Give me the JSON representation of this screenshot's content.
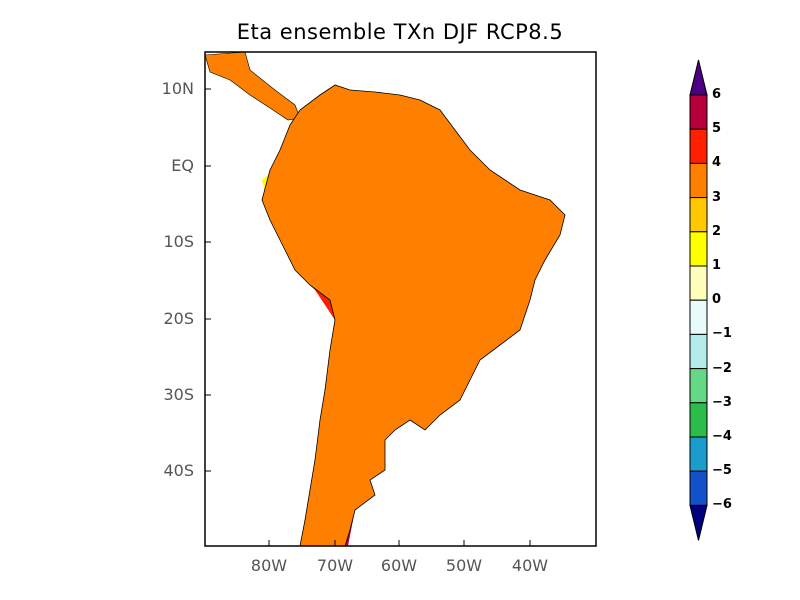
{
  "title": "Eta ensemble TXn DJF RCP8.5",
  "map": {
    "lat_labels": [
      "10N",
      "EQ",
      "10S",
      "20S",
      "30S",
      "40S"
    ],
    "lon_labels": [
      "80W",
      "70W",
      "60W",
      "50W",
      "40W"
    ]
  },
  "colorbar": {
    "labels": [
      "6",
      "5",
      "4",
      "3",
      "2",
      "1",
      "0",
      "−1",
      "−2",
      "−3",
      "−4",
      "−5",
      "−6"
    ],
    "over_color": "#4b0082",
    "under_color": "#00007f",
    "colors_top_to_bottom": [
      "#b5003a",
      "#ff2000",
      "#ff8000",
      "#ffc800",
      "#ffff00",
      "#ffffbb",
      "#e8fafa",
      "#b4ecec",
      "#64d884",
      "#2cbc4c",
      "#1c9ccc",
      "#1450c8"
    ]
  },
  "fill_colors": {
    "dark_red": "#b5003a",
    "red": "#ff2000",
    "orange": "#ff8000",
    "gold": "#ffc800",
    "yellow": "#ffff00"
  }
}
